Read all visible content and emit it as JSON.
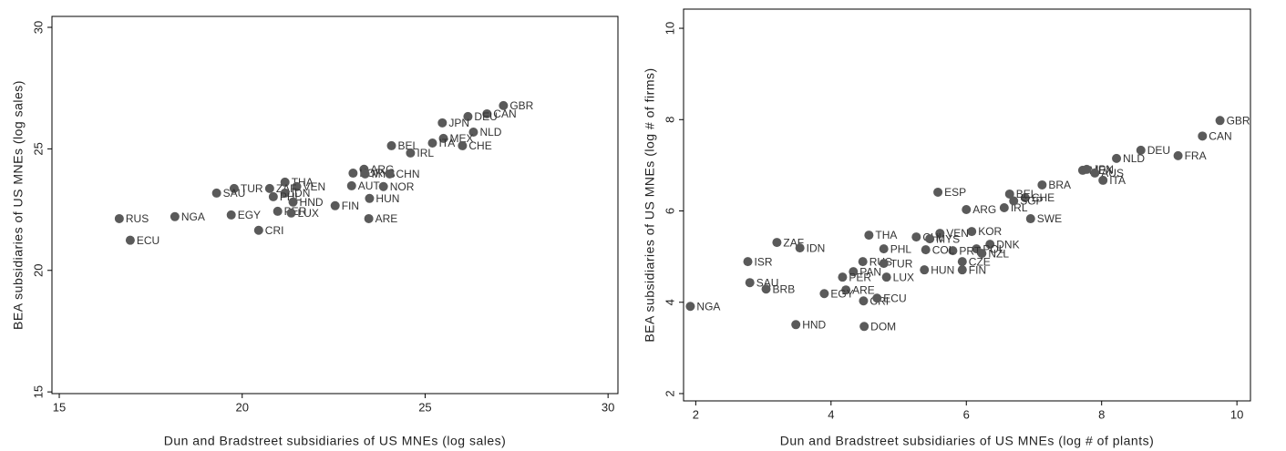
{
  "chart_data": [
    {
      "type": "scatter",
      "x_label": "Dun and Bradstreet subsidiaries of US MNEs (log sales)",
      "y_label": "BEA subsidiaries of US MNEs (log sales)",
      "xlim": [
        14.8,
        30.27
      ],
      "ylim": [
        14.93,
        30.45
      ],
      "xticks": [
        15,
        20,
        25,
        30
      ],
      "yticks": [
        15,
        20,
        25,
        30
      ],
      "color": "#5a5a5a",
      "labels": [
        "GBR",
        "CAN",
        "DEU",
        "NLD",
        "JPN",
        "MEX",
        "CHE",
        "BEL",
        "IRL",
        "ITA",
        "ARG",
        "KOR",
        "MYS",
        "CHN",
        "AUT",
        "NOR",
        "HUN",
        "FIN",
        "ARE",
        "THA",
        "VEN",
        "ZAF",
        "TUR",
        "SAU",
        "IDN",
        "PHL",
        "HND",
        "PER",
        "LUX",
        "EGY",
        "CRI",
        "RUS",
        "NGA",
        "ECU"
      ],
      "x": [
        27.14,
        26.69,
        26.17,
        26.32,
        25.47,
        25.5,
        26.02,
        24.08,
        24.6,
        25.2,
        23.33,
        23.03,
        23.36,
        24.03,
        22.99,
        23.86,
        23.48,
        22.54,
        23.46,
        21.17,
        21.49,
        20.75,
        19.78,
        19.3,
        21.17,
        20.85,
        21.39,
        20.97,
        21.34,
        19.7,
        20.45,
        16.64,
        18.16,
        16.94
      ],
      "y": [
        26.78,
        26.44,
        26.33,
        25.69,
        26.07,
        25.43,
        25.13,
        25.13,
        24.83,
        25.24,
        24.16,
        24.0,
        23.97,
        23.97,
        23.48,
        23.45,
        22.96,
        22.66,
        22.13,
        23.63,
        23.45,
        23.37,
        23.37,
        23.18,
        23.18,
        23.03,
        22.81,
        22.43,
        22.36,
        22.28,
        21.65,
        22.13,
        22.21,
        21.24
      ]
    },
    {
      "type": "scatter",
      "x_label": "Dun and Bradstreet subsidiaries of US MNEs (log # of plants)",
      "y_label": "BEA subsidiaries of US MNEs (log # of firms)",
      "xlim": [
        1.82,
        10.2
      ],
      "ylim": [
        1.84,
        10.42
      ],
      "xticks": [
        2,
        4,
        6,
        8,
        10
      ],
      "yticks": [
        2,
        4,
        6,
        8,
        10
      ],
      "color": "#5a5a5a",
      "labels": [
        "GBR",
        "CAN",
        "FRA",
        "DEU",
        "NLD",
        "MEX",
        "JPN",
        "AUS",
        "ITA",
        "BRA",
        "CHE",
        "IRL",
        "SWE",
        "ESP",
        "BEL",
        "SGP",
        "ARG",
        "KOR",
        "VEN",
        "CHL",
        "MYS",
        "DNK",
        "POL",
        "PRT",
        "COL",
        "NZL",
        "CZE",
        "FIN",
        "HUN",
        "THA",
        "PHL",
        "ZAF",
        "IDN",
        "ISR",
        "RUS",
        "TUR",
        "PAN",
        "LUX",
        "PER",
        "SAU",
        "BRB",
        "ARE",
        "EGY",
        "CRI",
        "ECU",
        "NGA",
        "HND",
        "DOM"
      ],
      "x": [
        9.75,
        9.49,
        9.13,
        8.58,
        8.22,
        7.72,
        7.78,
        7.9,
        8.02,
        7.12,
        6.87,
        6.56,
        6.95,
        5.58,
        6.64,
        6.7,
        6.0,
        6.08,
        5.61,
        5.26,
        5.46,
        6.35,
        6.15,
        5.8,
        5.4,
        6.23,
        5.94,
        5.94,
        5.38,
        4.56,
        4.78,
        3.2,
        3.54,
        2.77,
        4.47,
        4.78,
        4.33,
        4.82,
        4.17,
        2.8,
        3.04,
        4.22,
        3.9,
        4.48,
        4.68,
        1.92,
        3.48,
        4.49
      ],
      "y": [
        7.98,
        7.64,
        7.21,
        7.33,
        7.15,
        6.89,
        6.91,
        6.83,
        6.67,
        6.57,
        6.29,
        6.07,
        5.83,
        6.41,
        6.37,
        6.22,
        6.03,
        5.55,
        5.51,
        5.43,
        5.39,
        5.27,
        5.17,
        5.13,
        5.15,
        5.07,
        4.89,
        4.71,
        4.71,
        5.47,
        5.17,
        5.31,
        5.19,
        4.89,
        4.89,
        4.85,
        4.67,
        4.55,
        4.55,
        4.43,
        4.29,
        4.27,
        4.19,
        4.03,
        4.09,
        3.91,
        3.51,
        3.47
      ]
    }
  ]
}
